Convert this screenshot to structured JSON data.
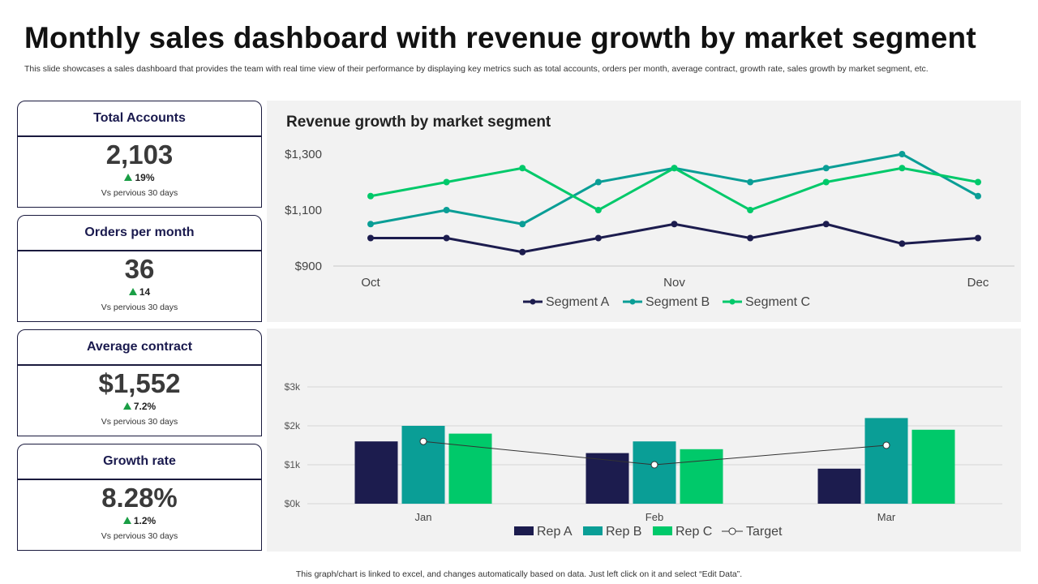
{
  "title": "Monthly sales dashboard with revenue growth by market segment",
  "subtitle": "This slide showcases a sales dashboard that provides the team with real time view of their performance by displaying key metrics such as total accounts, orders per month, average contract, growth rate, sales growth by market segment, etc.",
  "kpis": [
    {
      "label": "Total Accounts",
      "value": "2,103",
      "change": "19%",
      "note": "Vs pervious 30 days"
    },
    {
      "label": "Orders per month",
      "value": "36",
      "change": "14",
      "note": "Vs pervious 30 days"
    },
    {
      "label": "Average contract",
      "value": "$1,552",
      "change": "7.2%",
      "note": "Vs pervious 30 days"
    },
    {
      "label": "Growth rate",
      "value": "8.28%",
      "change": "1.2%",
      "note": "Vs pervious 30 days"
    }
  ],
  "footer": "This graph/chart is linked to excel, and changes automatically based on data. Just left click on it and select “Edit Data”.",
  "colors": {
    "navy": "#1c1c4e",
    "teal": "#0a9e96",
    "green": "#00c96a",
    "up_arrow": "#1a9e45"
  },
  "chart_data": [
    {
      "type": "line",
      "title": "Revenue growth by market segment",
      "x_labels": [
        "Oct",
        "Nov",
        "Dec"
      ],
      "points_per_series": 9,
      "ylim": [
        900,
        1300
      ],
      "y_ticks": [
        "$900",
        "$1,100",
        "$1,300"
      ],
      "series": [
        {
          "name": "Segment A",
          "values": [
            1000,
            1000,
            950,
            1000,
            1050,
            1000,
            1050,
            980,
            1000
          ]
        },
        {
          "name": "Segment B",
          "values": [
            1050,
            1100,
            1050,
            1200,
            1250,
            1200,
            1250,
            1300,
            1150
          ]
        },
        {
          "name": "Segment C",
          "values": [
            1150,
            1200,
            1250,
            1100,
            1250,
            1100,
            1200,
            1250,
            1200
          ]
        }
      ],
      "legend": "bottom"
    },
    {
      "type": "bar",
      "title": "",
      "categories": [
        "Jan",
        "Feb",
        "Mar"
      ],
      "ylim": [
        0,
        3000
      ],
      "y_ticks": [
        "$0k",
        "$1k",
        "$2k",
        "$3k"
      ],
      "series": [
        {
          "name": "Rep A",
          "values": [
            1600,
            1300,
            900
          ]
        },
        {
          "name": "Rep B",
          "values": [
            2000,
            1600,
            2200
          ]
        },
        {
          "name": "Rep C",
          "values": [
            1800,
            1400,
            1900
          ]
        }
      ],
      "line_series": {
        "name": "Target",
        "values": [
          1600,
          1000,
          1500
        ]
      },
      "legend": "bottom"
    }
  ]
}
